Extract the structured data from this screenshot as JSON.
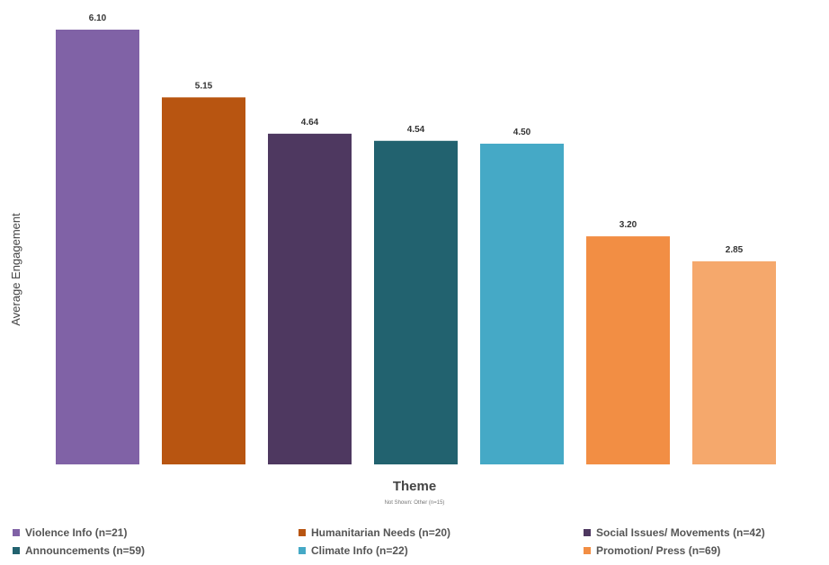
{
  "chart_data": {
    "type": "bar",
    "xlabel": "Theme",
    "ylabel": "Average Engagement",
    "note": "Not Shown: Other (n=15)",
    "ylim": [
      0,
      6.1
    ],
    "grid": false,
    "legend_position": "bottom",
    "categories": [
      "Violence Info (n=21)",
      "Humanitarian Needs (n=20)",
      "Social Issues/ Movements (n=42)",
      "Announcements (n=59)",
      "Climate Info (n=22)",
      "Promotion/ Press (n=69)",
      ""
    ],
    "values": [
      6.1,
      5.15,
      4.64,
      4.54,
      4.5,
      3.2,
      2.85
    ],
    "value_labels": [
      "6.10",
      "5.15",
      "4.64",
      "4.54",
      "4.50",
      "3.20",
      "2.85"
    ],
    "colors": [
      "#8062a6",
      "#b85511",
      "#4e3860",
      "#22626f",
      "#45a9c6",
      "#f28e44",
      "#f5a86c"
    ],
    "legend": [
      {
        "label": "Violence Info (n=21)",
        "color": "#8062a6"
      },
      {
        "label": "Humanitarian Needs (n=20)",
        "color": "#b85511"
      },
      {
        "label": "Social Issues/ Movements (n=42)",
        "color": "#4e3860"
      },
      {
        "label": "Announcements (n=59)",
        "color": "#22626f"
      },
      {
        "label": "Climate Info (n=22)",
        "color": "#45a9c6"
      },
      {
        "label": "Promotion/ Press (n=69)",
        "color": "#f28e44"
      }
    ]
  }
}
